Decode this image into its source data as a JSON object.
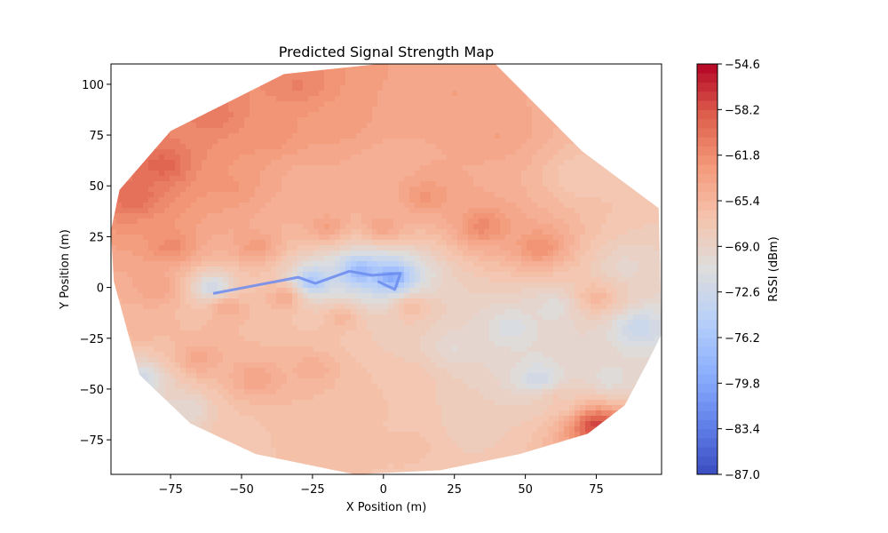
{
  "chart_data": {
    "type": "heatmap",
    "variant": "filled-contour",
    "title": "Predicted Signal Strength Map",
    "xlabel": "X Position (m)",
    "ylabel": "Y Position (m)",
    "xlim": [
      -96,
      98
    ],
    "ylim": [
      -92,
      110
    ],
    "xticks": [
      -75,
      -50,
      -25,
      0,
      25,
      50,
      75
    ],
    "yticks": [
      -75,
      -50,
      -25,
      0,
      25,
      50,
      75,
      100
    ],
    "grid": false,
    "colormap": "coolwarm",
    "colorbar": {
      "label": "RSSI (dBm)",
      "range": [
        -87.0,
        -54.6
      ],
      "ticks": [
        "-87.0",
        "-83.4",
        "-79.8",
        "-76.2",
        "-72.6",
        "-69.0",
        "-65.4",
        "-61.8",
        "-58.2",
        "-54.6"
      ]
    },
    "boundary_hull": [
      [
        -93,
        48
      ],
      [
        -75,
        77
      ],
      [
        -35,
        105
      ],
      [
        12,
        112
      ],
      [
        38,
        112
      ],
      [
        70,
        67
      ],
      [
        97,
        39
      ],
      [
        98,
        -23
      ],
      [
        93,
        -37
      ],
      [
        85,
        -58
      ],
      [
        72,
        -72
      ],
      [
        48,
        -82
      ],
      [
        20,
        -90
      ],
      [
        -10,
        -92
      ],
      [
        -45,
        -82
      ],
      [
        -68,
        -67
      ],
      [
        -86,
        -43
      ],
      [
        -95,
        3
      ],
      [
        -96,
        28
      ]
    ],
    "rssi_samples": [
      [
        -88,
        45,
        -59.5
      ],
      [
        -78,
        60,
        -59.0
      ],
      [
        -60,
        85,
        -60.5
      ],
      [
        -30,
        100,
        -61.0
      ],
      [
        -40,
        75,
        -62.0
      ],
      [
        -15,
        80,
        -63.0
      ],
      [
        -55,
        50,
        -62.5
      ],
      [
        -30,
        55,
        -64.5
      ],
      [
        0,
        60,
        -65.0
      ],
      [
        25,
        95,
        -63.5
      ],
      [
        40,
        75,
        -63.5
      ],
      [
        70,
        55,
        -67.5
      ],
      [
        15,
        45,
        -62.5
      ],
      [
        35,
        30,
        -61.5
      ],
      [
        55,
        20,
        -62.0
      ],
      [
        0,
        30,
        -63.5
      ],
      [
        -20,
        30,
        -63.5
      ],
      [
        -45,
        20,
        -63.0
      ],
      [
        -75,
        20,
        -61.5
      ],
      [
        -80,
        0,
        -63.5
      ],
      [
        -55,
        -10,
        -64.5
      ],
      [
        -35,
        -5,
        -64.5
      ],
      [
        -15,
        -15,
        -65.5
      ],
      [
        10,
        -10,
        -66.0
      ],
      [
        -85,
        -20,
        -65.5
      ],
      [
        -65,
        -35,
        -64.0
      ],
      [
        -45,
        -45,
        -63.5
      ],
      [
        -25,
        -40,
        -64.5
      ],
      [
        -10,
        -55,
        -66.0
      ],
      [
        10,
        -45,
        -67.0
      ],
      [
        25,
        -30,
        -70.0
      ],
      [
        45,
        -20,
        -71.5
      ],
      [
        60,
        -10,
        -70.5
      ],
      [
        75,
        -5,
        -65.5
      ],
      [
        85,
        10,
        -69.5
      ],
      [
        90,
        -20,
        -73.0
      ],
      [
        -85,
        -45,
        -72.0
      ],
      [
        -70,
        -60,
        -70.0
      ],
      [
        -50,
        -70,
        -67.0
      ],
      [
        -20,
        -80,
        -66.5
      ],
      [
        10,
        -78,
        -66.5
      ],
      [
        30,
        -70,
        -68.0
      ],
      [
        60,
        -55,
        -67.5
      ],
      [
        55,
        -45,
        -72.5
      ],
      [
        80,
        -45,
        -70.5
      ],
      [
        -60,
        0,
        -72.5
      ],
      [
        -25,
        3,
        -76.0
      ],
      [
        -8,
        8,
        -78.0
      ],
      [
        3,
        5,
        -79.5
      ],
      [
        75,
        -68,
        -57.5
      ]
    ]
  }
}
